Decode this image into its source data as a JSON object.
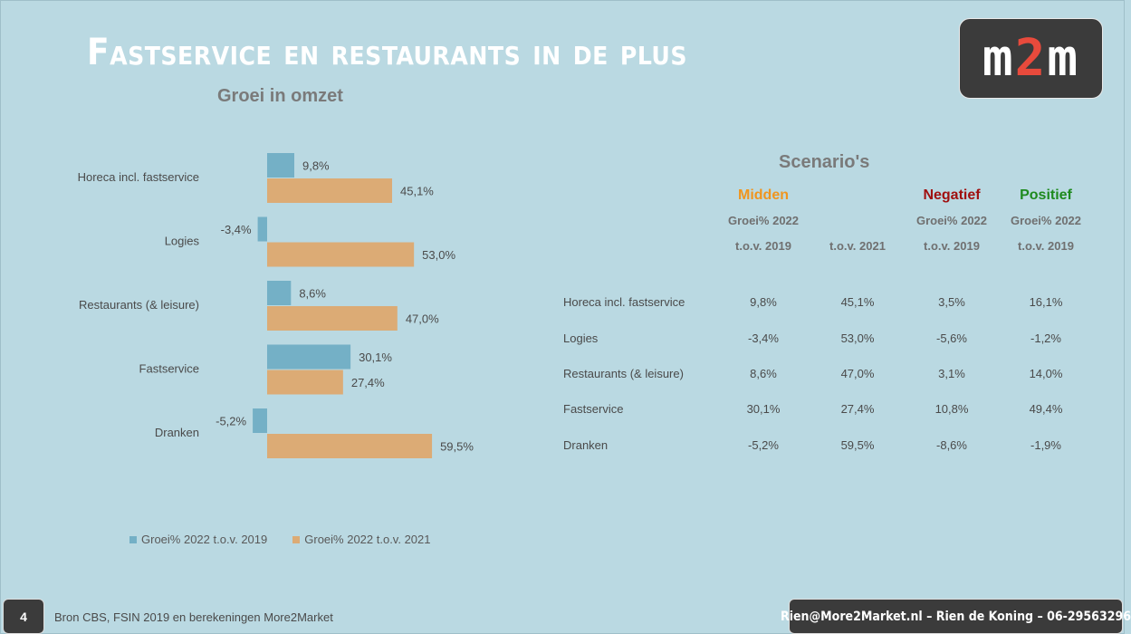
{
  "slide": {
    "title": "Fastservice en restaurants in de plus",
    "logo_prefix": "m",
    "logo_accent": "2",
    "logo_suffix": "m",
    "page_number": "4",
    "source": "Bron CBS, FSIN 2019 en berekeningen More2Market",
    "contact": "Rien@More2Market.nl – Rien de Koning – 06-29563296"
  },
  "chart_data": {
    "type": "bar",
    "orientation": "horizontal",
    "title": "Groei in omzet",
    "categories": [
      "Horeca incl. fastservice",
      "Logies",
      "Restaurants (& leisure)",
      "Fastservice",
      "Dranken"
    ],
    "series": [
      {
        "name": "Groei% 2022 t.o.v. 2019",
        "values": [
          9.8,
          -3.4,
          8.6,
          30.1,
          -5.2
        ],
        "labels": [
          "9,8%",
          "-3,4%",
          "8,6%",
          "30,1%",
          "-5,2%"
        ],
        "color": "#74b0c6"
      },
      {
        "name": "Groei% 2022 t.o.v. 2021",
        "values": [
          45.1,
          53.0,
          47.0,
          27.4,
          59.5
        ],
        "labels": [
          "45,1%",
          "53,0%",
          "47,0%",
          "27,4%",
          "59,5%"
        ],
        "color": "#dcab75"
      }
    ],
    "grid": false,
    "legend_position": "bottom"
  },
  "scenarios": {
    "title": "Scenario's",
    "columns": [
      {
        "name": "Midden",
        "color": "#f0951e",
        "sub1": "Groei% 2022",
        "sub2": "t.o.v. 2019"
      },
      {
        "name": "",
        "color": "#707070",
        "sub1": "",
        "sub2": "t.o.v. 2021"
      },
      {
        "name": "Negatief",
        "color": "#a01010",
        "sub1": "Groei% 2022",
        "sub2": "t.o.v. 2019"
      },
      {
        "name": "Positief",
        "color": "#1e8a1e",
        "sub1": "Groei% 2022",
        "sub2": "t.o.v. 2019"
      }
    ],
    "rows": [
      {
        "label": "Horeca incl. fastservice",
        "values": [
          "9,8%",
          "45,1%",
          "3,5%",
          "16,1%"
        ]
      },
      {
        "label": "Logies",
        "values": [
          "-3,4%",
          "53,0%",
          "-5,6%",
          "-1,2%"
        ]
      },
      {
        "label": "Restaurants (& leisure)",
        "values": [
          "8,6%",
          "47,0%",
          "3,1%",
          "14,0%"
        ]
      },
      {
        "label": "Fastservice",
        "values": [
          "30,1%",
          "27,4%",
          "10,8%",
          "49,4%"
        ]
      },
      {
        "label": "Dranken",
        "values": [
          "-5,2%",
          "59,5%",
          "-8,6%",
          "-1,9%"
        ]
      }
    ]
  }
}
